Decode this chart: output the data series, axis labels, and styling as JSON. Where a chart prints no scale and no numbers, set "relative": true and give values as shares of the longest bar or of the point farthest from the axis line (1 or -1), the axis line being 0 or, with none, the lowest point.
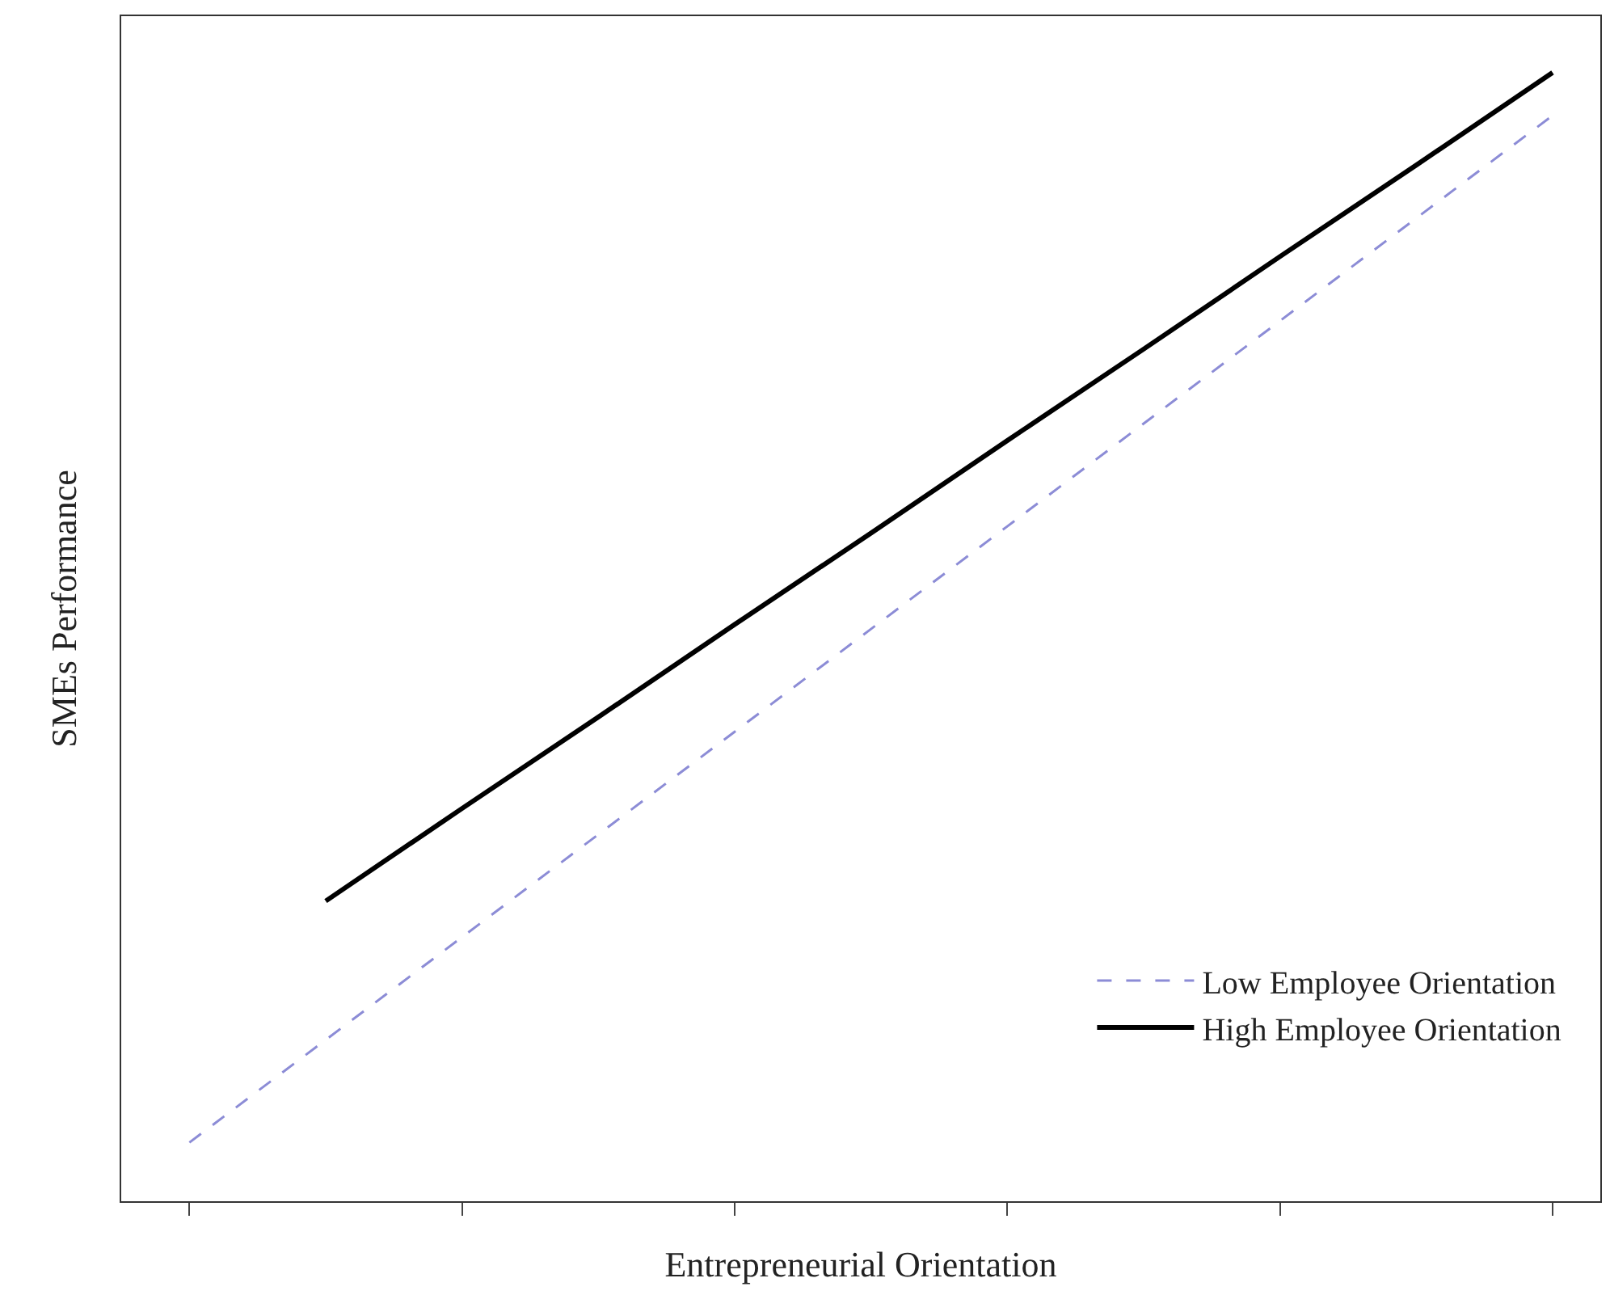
{
  "chart_data": {
    "type": "line",
    "relative": true,
    "xlabel": "Entrepreneurial Orientation",
    "ylabel": "SMEs Performance",
    "categories": [
      null,
      null,
      null,
      null,
      null,
      null,
      null,
      null,
      null,
      null,
      null
    ],
    "series": [
      {
        "name": "Low Employee Orientation",
        "color": "#8c8cd6",
        "line_style": "dashed",
        "values": [
          0.052,
          0.143,
          0.234,
          0.325,
          0.416,
          0.507,
          0.598,
          0.689,
          0.78,
          0.871,
          0.962
        ]
      },
      {
        "name": "High Employee Orientation",
        "color": "#000000",
        "line_style": "solid",
        "values": [
          null,
          0.266,
          0.348,
          0.429,
          0.511,
          0.592,
          0.674,
          0.755,
          0.837,
          0.918,
          1.0
        ]
      }
    ],
    "legend": "bottom right",
    "marker": "none"
  }
}
